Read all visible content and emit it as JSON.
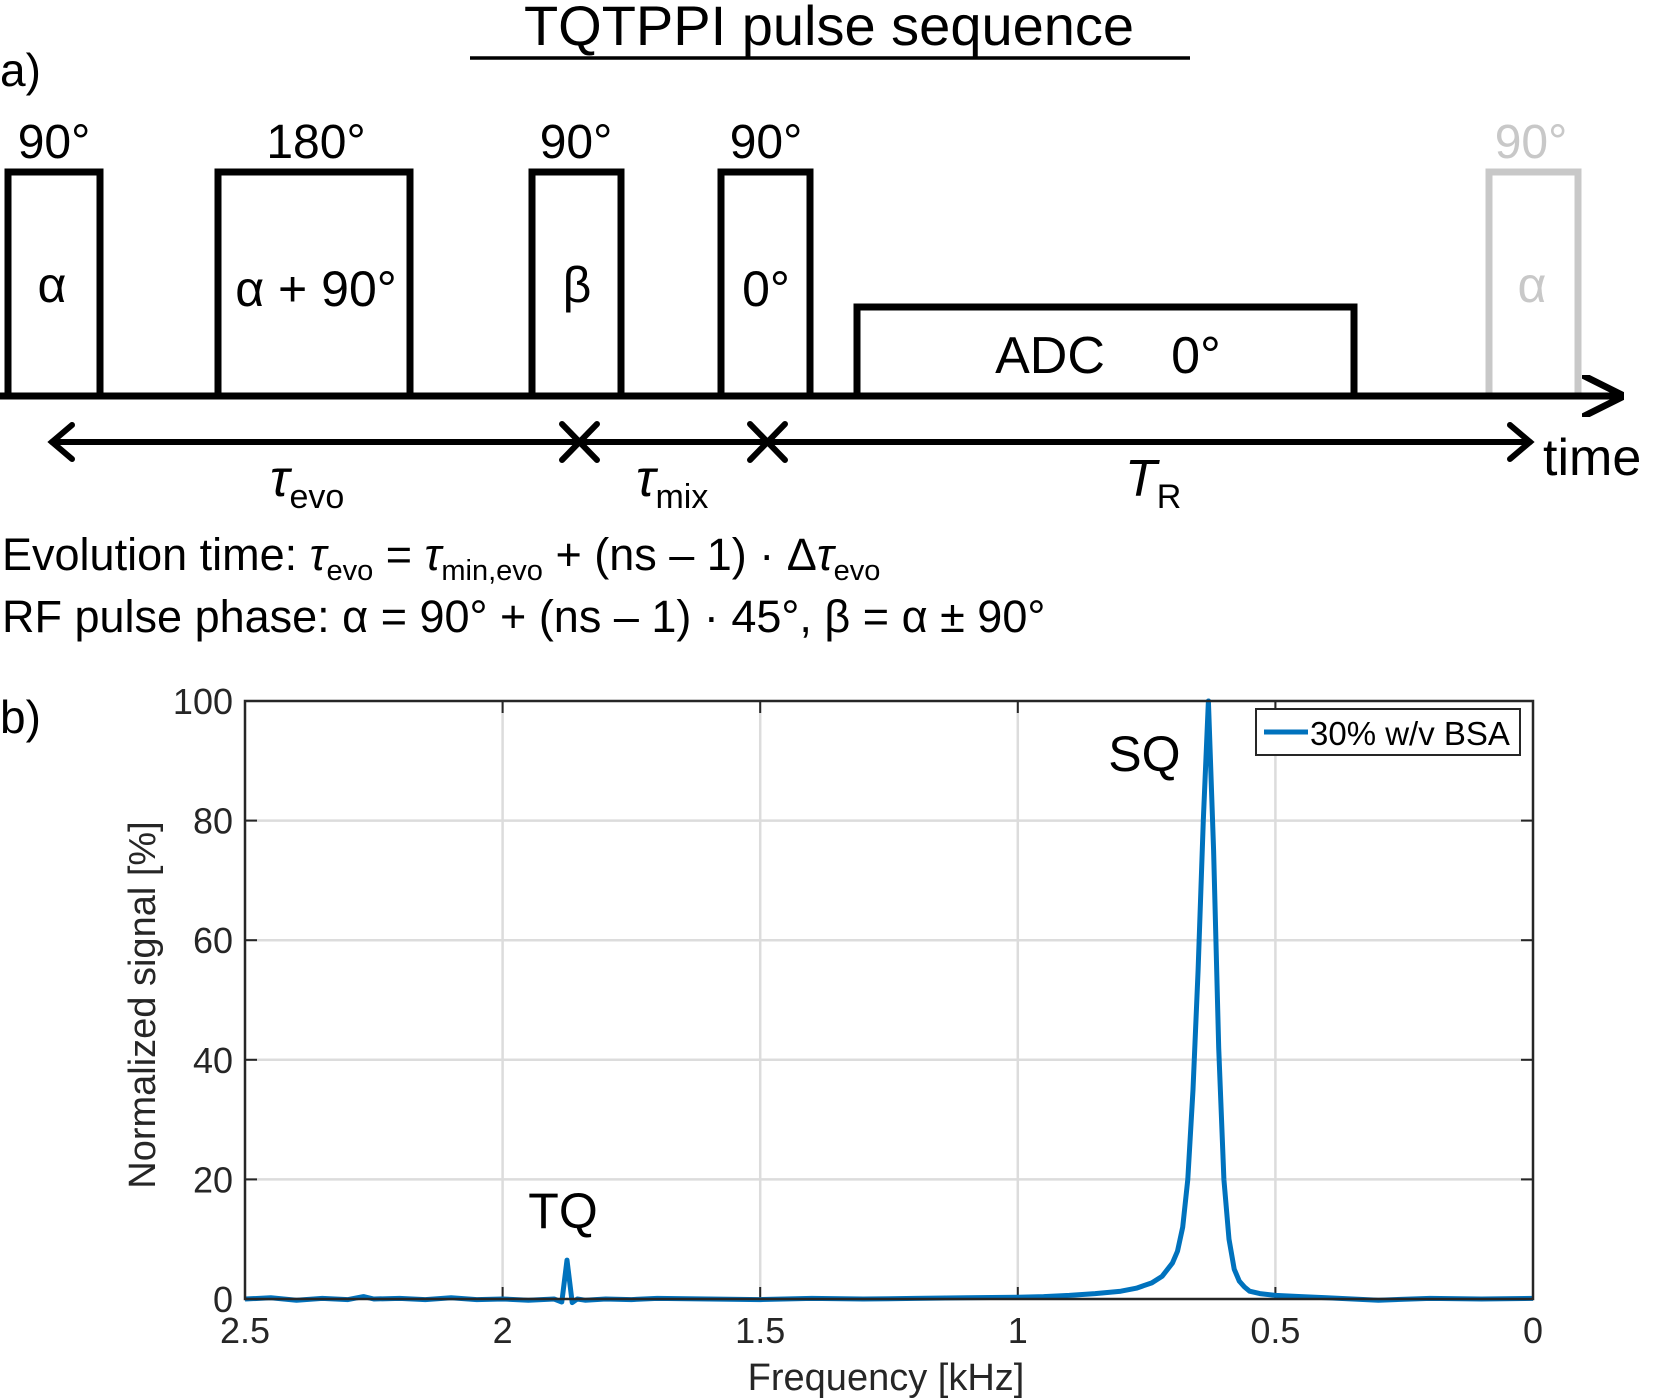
{
  "title": "TQTPPI pulse sequence",
  "panel_a": {
    "label": "a)",
    "pulses": [
      {
        "id": "p1",
        "angle": "90°",
        "phase": "α"
      },
      {
        "id": "p2",
        "angle": "180°",
        "phase": "α + 90°"
      },
      {
        "id": "p3",
        "angle": "90°",
        "phase": "β"
      },
      {
        "id": "p4",
        "angle": "90°",
        "phase": "0°"
      },
      {
        "id": "p5",
        "angle": "90°",
        "phase": "α"
      }
    ],
    "adc": {
      "label": "ADC",
      "phase": "0°"
    },
    "time_label": "time",
    "intervals": {
      "evo": {
        "sym": "τ",
        "sub": "evo"
      },
      "mix": {
        "sym": "τ",
        "sub": "mix"
      },
      "tr": {
        "sym": "T",
        "sub": "R"
      }
    },
    "equations": {
      "evolution": {
        "prefix": "Evolution time: ",
        "t1": "τ",
        "s1": "evo",
        "eq": " = ",
        "t2": "τ",
        "s2": "min,evo",
        "mid": " + (ns – 1) · Δ",
        "t3": "τ",
        "s3": "evo"
      },
      "phase": "RF pulse phase: α = 90° + (ns – 1) · 45°, β = α ± 90°"
    },
    "colors": {
      "main": "#000000",
      "faded": "#c8c8c8"
    }
  },
  "panel_b": {
    "label": "b)",
    "legend": "30% w/v BSA",
    "annotations": {
      "tq": "TQ",
      "sq": "SQ"
    },
    "color": "#0072bd"
  },
  "chart_data": {
    "type": "line",
    "title": "",
    "xlabel": "Frequency [kHz]",
    "ylabel": "Normalized signal [%]",
    "xlim": [
      2.5,
      0
    ],
    "ylim": [
      0,
      100
    ],
    "x_reversed": true,
    "xticks": [
      2.5,
      2,
      1.5,
      1,
      0.5,
      0
    ],
    "xtick_labels": [
      "2.5",
      "2",
      "1.5",
      "1",
      "0.5",
      "0"
    ],
    "yticks": [
      0,
      20,
      40,
      60,
      80,
      100
    ],
    "ytick_labels": [
      "0",
      "20",
      "40",
      "60",
      "80",
      "100"
    ],
    "grid": true,
    "legend_position": "top-right",
    "series": [
      {
        "name": "30% w/v BSA",
        "x": [
          2.5,
          2.45,
          2.4,
          2.35,
          2.3,
          2.27,
          2.25,
          2.2,
          2.15,
          2.1,
          2.05,
          2.0,
          1.95,
          1.9,
          1.885,
          1.875,
          1.865,
          1.855,
          1.84,
          1.8,
          1.75,
          1.7,
          1.6,
          1.5,
          1.4,
          1.3,
          1.2,
          1.1,
          1.0,
          0.95,
          0.9,
          0.85,
          0.8,
          0.77,
          0.74,
          0.72,
          0.7,
          0.69,
          0.68,
          0.67,
          0.66,
          0.65,
          0.64,
          0.63,
          0.62,
          0.61,
          0.6,
          0.59,
          0.58,
          0.57,
          0.56,
          0.55,
          0.53,
          0.5,
          0.45,
          0.4,
          0.35,
          0.3,
          0.2,
          0.1,
          0.0
        ],
        "values": [
          0,
          0.2,
          -0.2,
          0.1,
          -0.1,
          0.4,
          0,
          0.1,
          -0.1,
          0.2,
          -0.1,
          0,
          -0.2,
          0,
          -0.5,
          6.5,
          -0.6,
          0,
          -0.2,
          0,
          -0.1,
          0.1,
          0,
          -0.1,
          0.1,
          0,
          0.1,
          0.2,
          0.3,
          0.4,
          0.6,
          0.9,
          1.3,
          1.8,
          2.7,
          3.8,
          6,
          8,
          12,
          20,
          35,
          55,
          80,
          100,
          75,
          42,
          20,
          10,
          5,
          3,
          2,
          1.3,
          0.9,
          0.6,
          0.4,
          0.2,
          0,
          -0.2,
          0.1,
          0,
          0.1
        ]
      }
    ]
  }
}
